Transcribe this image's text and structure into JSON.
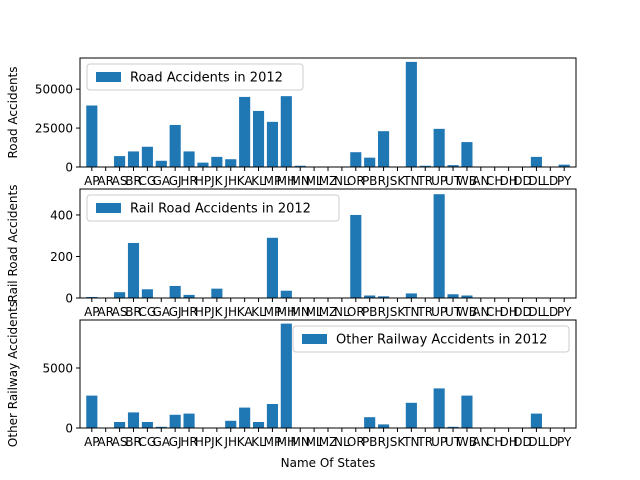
{
  "chart_data": [
    {
      "type": "bar",
      "categories": [
        "AP",
        "AR",
        "AS",
        "BR",
        "CG",
        "GA",
        "GJ",
        "HR",
        "HP",
        "JK",
        "JH",
        "KA",
        "KL",
        "MP",
        "MH",
        "MN",
        "ML",
        "MZ",
        "NL",
        "OR",
        "PB",
        "RJ",
        "SK",
        "TN",
        "TR",
        "UP",
        "UT",
        "WB",
        "AN",
        "CH",
        "DH",
        "DD",
        "DL",
        "LD",
        "PY"
      ],
      "series": [
        {
          "name": "Road Accidents in 2012",
          "values": [
            39500,
            0,
            7000,
            10000,
            13000,
            4000,
            27000,
            10000,
            2800,
            6500,
            5000,
            45000,
            36000,
            29000,
            45500,
            800,
            0,
            0,
            0,
            9500,
            6000,
            23000,
            0,
            67500,
            800,
            24500,
            1200,
            16000,
            0,
            0,
            0,
            0,
            6500,
            0,
            1500
          ]
        }
      ],
      "xlabel": "",
      "ylabel": "Road Accidents",
      "ylim": [
        0,
        70000
      ],
      "yticks": [
        0,
        25000,
        50000
      ],
      "legend": "upper-left"
    },
    {
      "type": "bar",
      "categories": [
        "AP",
        "AR",
        "AS",
        "BR",
        "CG",
        "GA",
        "GJ",
        "HR",
        "HP",
        "JK",
        "JH",
        "KA",
        "KL",
        "MP",
        "MH",
        "MN",
        "ML",
        "MZ",
        "NL",
        "OR",
        "PB",
        "RJ",
        "SK",
        "TN",
        "TR",
        "UP",
        "UT",
        "WB",
        "AN",
        "CH",
        "DH",
        "DD",
        "DL",
        "LD",
        "PY"
      ],
      "series": [
        {
          "name": "Rail Road Accidents in 2012",
          "values": [
            5,
            0,
            28,
            265,
            42,
            0,
            58,
            15,
            0,
            45,
            0,
            0,
            0,
            290,
            35,
            0,
            0,
            0,
            0,
            400,
            12,
            8,
            0,
            22,
            0,
            500,
            18,
            12,
            0,
            0,
            0,
            0,
            0,
            0,
            0
          ]
        }
      ],
      "xlabel": "",
      "ylabel": "Rail Road Accidents",
      "ylim": [
        0,
        525
      ],
      "yticks": [
        0,
        200,
        400
      ],
      "legend": "upper-left"
    },
    {
      "type": "bar",
      "categories": [
        "AP",
        "AR",
        "AS",
        "BR",
        "CG",
        "GA",
        "GJ",
        "HR",
        "HP",
        "JK",
        "JH",
        "KA",
        "KL",
        "MP",
        "MH",
        "MN",
        "ML",
        "MZ",
        "NL",
        "OR",
        "PB",
        "RJ",
        "SK",
        "TN",
        "TR",
        "UP",
        "UT",
        "WB",
        "AN",
        "CH",
        "DH",
        "DD",
        "DL",
        "LD",
        "PY"
      ],
      "series": [
        {
          "name": "Other Railway Accidents in 2012",
          "values": [
            2700,
            0,
            500,
            1300,
            500,
            100,
            1100,
            1200,
            0,
            0,
            600,
            1700,
            500,
            2000,
            8700,
            0,
            0,
            0,
            0,
            0,
            900,
            300,
            0,
            2100,
            0,
            3300,
            100,
            2700,
            0,
            0,
            0,
            0,
            1200,
            0,
            0
          ]
        }
      ],
      "xlabel": "Name Of States",
      "ylabel": "Other Railway  Accidents",
      "ylim": [
        0,
        9000
      ],
      "yticks": [
        0,
        5000
      ],
      "legend": "upper-right"
    }
  ]
}
